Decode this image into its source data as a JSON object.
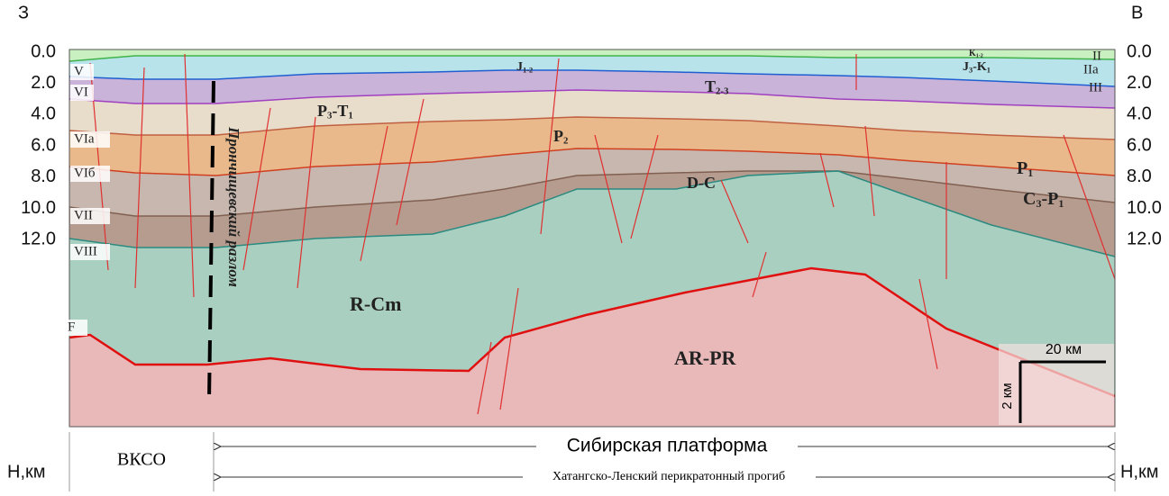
{
  "side_labels": {
    "west": "З",
    "east": "В"
  },
  "depth_labels": [
    "0.0",
    "2.0",
    "4.0",
    "6.0",
    "8.0",
    "10.0",
    "12.0"
  ],
  "axis_unit": "Н,км",
  "horizons_left": [
    "V",
    "VI",
    "VIa",
    "VIб",
    "VII",
    "VIII",
    "F"
  ],
  "horizons_right": [
    "II",
    "IIa",
    "III"
  ],
  "units": [
    {
      "base": "J",
      "sub": "1-2"
    },
    {
      "base": "K",
      "sub": "1-2"
    },
    {
      "base": "J",
      "sub": "3",
      "base2": "-K",
      "sub2": "1"
    },
    {
      "base": "T",
      "sub": "2-3"
    },
    {
      "base": "P",
      "sub": "3",
      "base2": "-T",
      "sub2": "1"
    },
    {
      "base": "P",
      "sub": "2"
    },
    {
      "base": "P",
      "sub": "1"
    },
    {
      "base": "D-C"
    },
    {
      "base": "C",
      "sub": "3",
      "base2": "-P",
      "sub2": "1"
    },
    {
      "base": "R-Cm"
    },
    {
      "base": "AR-PR"
    }
  ],
  "fault_label": "Прончищевский разлом",
  "scale_bar": {
    "horizontal": "20 км",
    "vertical": "2 км"
  },
  "footer": {
    "left": "ВКСО",
    "platform": "Сибирская платформа",
    "trough": "Хатангско-Ленский перикратонный прогиб"
  }
}
